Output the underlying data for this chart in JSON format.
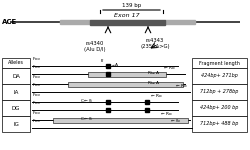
{
  "title": "",
  "ace_label": "ACE",
  "exon_label": "Exon 17",
  "bracket_label": "139 bp",
  "rs4340_label": "rs4340\n(Alu D/I)",
  "rs4343_label": "rs4343\n(2350A>G)",
  "alleles_header": "Alleles",
  "fragment_header": "Fragment length",
  "alleles": [
    "DA",
    "IA",
    "DG",
    "IG"
  ],
  "fragments": [
    "424bp+ 271bp",
    "712bp + 278bp",
    "424bp+ 200 bp",
    "712bp+ 488 bp"
  ],
  "bg_color": "#f0f0f0",
  "line_color": "#222222",
  "box_color": "#888888",
  "exon_box_color": "#555555",
  "amplicon_color": "#d0d0d0"
}
